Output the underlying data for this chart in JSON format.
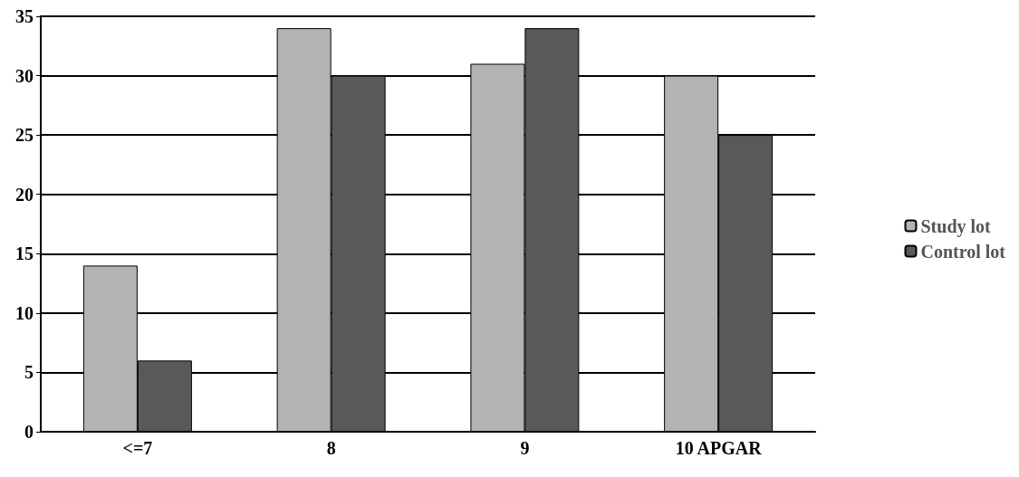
{
  "chart_data": {
    "type": "bar",
    "categories": [
      "<=7",
      "8",
      "9",
      "10 APGAR"
    ],
    "series": [
      {
        "name": "Study lot",
        "color": "#b3b3b3",
        "values": [
          14,
          34,
          31,
          30
        ]
      },
      {
        "name": "Control lot",
        "color": "#595959",
        "values": [
          6,
          30,
          34,
          25
        ]
      }
    ],
    "ylim": [
      0,
      35
    ],
    "yticks": [
      0,
      5,
      10,
      15,
      20,
      25,
      30,
      35
    ],
    "grid": "y",
    "legend": "right"
  }
}
